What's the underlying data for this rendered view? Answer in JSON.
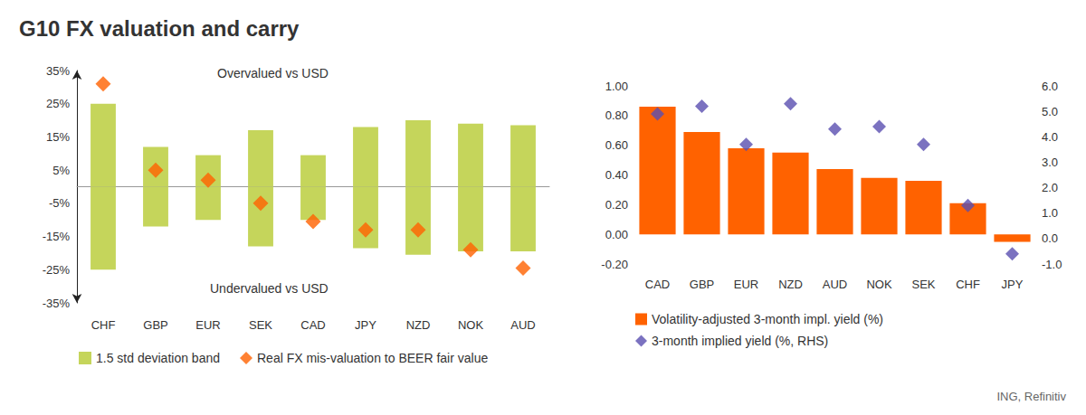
{
  "title": "G10 FX valuation and carry",
  "source": "ING, Refinitiv",
  "chart_data": [
    {
      "type": "bar",
      "categories": [
        "CHF",
        "GBP",
        "EUR",
        "SEK",
        "CAD",
        "JPY",
        "NZD",
        "NOK",
        "AUD"
      ],
      "annotations": [
        "Overvalued vs USD",
        "Undervalued vs USD"
      ],
      "ylim": [
        -35,
        35
      ],
      "yticks": [
        {
          "value": -35,
          "label": "-35%"
        },
        {
          "value": -25,
          "label": "-25%"
        },
        {
          "value": -15,
          "label": "-15%"
        },
        {
          "value": -5,
          "label": "-5%"
        },
        {
          "value": 5,
          "label": "5%"
        },
        {
          "value": 15,
          "label": "15%"
        },
        {
          "value": 25,
          "label": "25%"
        },
        {
          "value": 35,
          "label": "35%"
        }
      ],
      "grid": false,
      "legend": "bottom",
      "series": [
        {
          "name": "1.5 std deviation band",
          "type": "bar",
          "color": "#c5d55b",
          "low": [
            -25,
            -12,
            -10,
            -18,
            -10,
            -18.5,
            -20.5,
            -19.5,
            -19.5
          ],
          "high": [
            25,
            12,
            9.5,
            17,
            9.5,
            18,
            20,
            19,
            18.5
          ]
        },
        {
          "name": "Real FX mis-valuation to BEER fair value",
          "type": "scatter",
          "marker": "diamond",
          "color": "#ff6200",
          "values": [
            31,
            5,
            2,
            -5,
            -10.5,
            -13,
            -13,
            -19,
            -24.5
          ]
        }
      ]
    },
    {
      "type": "bar",
      "categories": [
        "CAD",
        "GBP",
        "EUR",
        "NZD",
        "AUD",
        "NOK",
        "SEK",
        "CHF",
        "JPY"
      ],
      "ylim": [
        -0.2,
        1
      ],
      "yticks": [
        {
          "value": -0.2,
          "label": "-0.20"
        },
        {
          "value": 0,
          "label": "0.00"
        },
        {
          "value": 0.2,
          "label": "0.20"
        },
        {
          "value": 0.4,
          "label": "0.40"
        },
        {
          "value": 0.6,
          "label": "0.60"
        },
        {
          "value": 0.8,
          "label": "0.80"
        },
        {
          "value": 1,
          "label": "1.00"
        }
      ],
      "y2lim": [
        -1,
        6
      ],
      "y2ticks": [
        {
          "value": -1,
          "label": "-1.0"
        },
        {
          "value": 0,
          "label": "0.0"
        },
        {
          "value": 1,
          "label": "1.0"
        },
        {
          "value": 2,
          "label": "2.0"
        },
        {
          "value": 3,
          "label": "3.0"
        },
        {
          "value": 4,
          "label": "4.0"
        },
        {
          "value": 5,
          "label": "5.0"
        },
        {
          "value": 6,
          "label": "6.0"
        }
      ],
      "grid": false,
      "legend": "bottom",
      "series": [
        {
          "name": "Volatility-adjusted 3-month impl. yield (%)",
          "type": "bar",
          "color": "#ff6200",
          "values": [
            0.86,
            0.69,
            0.58,
            0.55,
            0.44,
            0.38,
            0.36,
            0.21,
            -0.05
          ]
        },
        {
          "name": "3-month implied yield (%, RHS)",
          "type": "scatter",
          "marker": "diamond",
          "color": "#5a4fb0",
          "axis": "y2",
          "values": [
            4.9,
            5.2,
            3.7,
            5.3,
            4.3,
            4.4,
            3.7,
            1.3,
            -0.6
          ]
        }
      ]
    }
  ]
}
